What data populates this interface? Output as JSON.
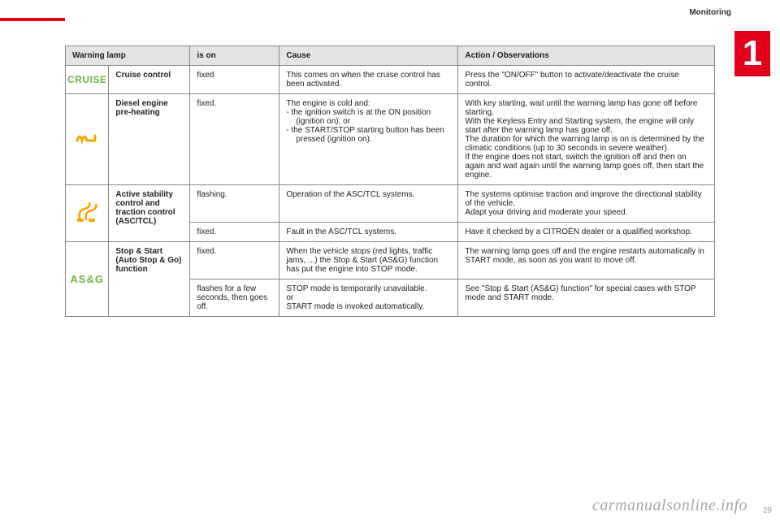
{
  "section_label": "Monitoring",
  "chapter_number": "1",
  "watermark": "carmanualsonline.info",
  "page_number": "29",
  "colors": {
    "accent_red": "#e2001a",
    "header_bg": "#e4e4e4",
    "border": "#888888",
    "icon_green": "#6db33f",
    "icon_amber": "#f7a600",
    "text": "#222222"
  },
  "table": {
    "headers": {
      "warning_lamp": "Warning lamp",
      "is_on": "is on",
      "cause": "Cause",
      "action": "Action / Observations"
    },
    "rows": [
      {
        "icon": {
          "type": "cruise",
          "text": "CRUISE"
        },
        "name": "Cruise control",
        "is_on": "fixed",
        "cause_text": "This comes on when the cruise control has been activated.",
        "action_text": "Press the \"ON/OFF\" button to activate/deactivate the cruise control."
      },
      {
        "icon": {
          "type": "preheat",
          "glyph": "⌇⌇"
        },
        "name": "Diesel engine pre-heating",
        "is_on": "fixed.",
        "cause_intro": "The engine is cold and:",
        "cause_items": [
          "the ignition switch is at the ON position (ignition on), or",
          "the START/STOP starting button has been pressed (ignition on)."
        ],
        "action_text": "With key starting, wait until the warning lamp has gone off before starting.\nWith the Keyless Entry and Starting system, the engine will only start after the warning lamp has gone off.\nThe duration for which the warning lamp is on is determined by the climatic conditions (up to 30 seconds in severe weather).\nIf the engine does not start, switch the ignition off and then on again and wait again until the warning lamp goes off, then start the engine."
      },
      {
        "icon": {
          "type": "asc"
        },
        "name": "Active stability control and traction control (ASC/TCL)",
        "sub": [
          {
            "is_on": "flashing.",
            "cause_text": "Operation of the ASC/TCL systems.",
            "action_text": "The systems optimise traction and improve the directional stability of the vehicle.\nAdapt your driving and moderate your speed."
          },
          {
            "is_on": "fixed.",
            "cause_text": "Fault in the ASC/TCL systems.",
            "action_text": "Have it checked by a CITROËN dealer or a qualified workshop."
          }
        ]
      },
      {
        "icon": {
          "type": "asg",
          "text": "AS&G"
        },
        "name": "Stop & Start (Auto Stop & Go) function",
        "sub": [
          {
            "is_on": "fixed.",
            "cause_text": "When the vehicle stops (red lights, traffic jams, ...) the Stop & Start (AS&G) function has put the engine into STOP mode.",
            "action_text": "The warning lamp goes off and the engine restarts automatically in START mode, as soon as you want to move off."
          },
          {
            "is_on": "flashes for a few seconds, then goes off.",
            "cause_text": "STOP mode is temporarily unavailable.\nor\nSTART mode is invoked automatically.",
            "action_text": "See \"Stop & Start (AS&G) function\" for special cases with STOP mode and START mode."
          }
        ]
      }
    ]
  }
}
